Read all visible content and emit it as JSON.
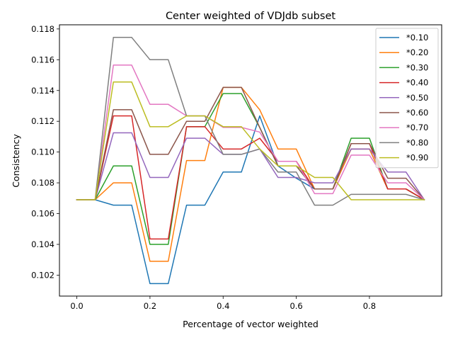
{
  "chart_data": {
    "type": "line",
    "title": "Center weighted of VDJdb subset",
    "xlabel": "Percentage of vector weighted",
    "ylabel": "Consistency",
    "xlim": [
      -0.0475,
      0.9975
    ],
    "ylim": [
      0.10064,
      0.11827
    ],
    "x_ticks": [
      "0.0",
      "0.2",
      "0.4",
      "0.6",
      "0.8"
    ],
    "y_ticks": [
      "0.102",
      "0.104",
      "0.106",
      "0.108",
      "0.110",
      "0.112",
      "0.114",
      "0.116",
      "0.118"
    ],
    "grid": false,
    "legend_position": "top-right",
    "x": [
      0.0,
      0.05,
      0.1,
      0.15,
      0.2,
      0.25,
      0.3,
      0.35,
      0.4,
      0.45,
      0.5,
      0.55,
      0.6,
      0.65,
      0.7,
      0.75,
      0.8,
      0.85,
      0.9,
      0.95
    ],
    "series": [
      {
        "name": "*0.10",
        "color": "#1f77b4",
        "values": [
          0.1069,
          0.1069,
          0.10655,
          0.10655,
          0.10145,
          0.10145,
          0.10655,
          0.10655,
          0.1087,
          0.1087,
          0.11235,
          0.1091,
          0.1083,
          0.1076,
          0.1076,
          0.1102,
          0.1102,
          0.1076,
          0.1076,
          0.1069
        ]
      },
      {
        "name": "*0.20",
        "color": "#ff7f0e",
        "values": [
          0.1069,
          0.1069,
          0.108,
          0.108,
          0.1029,
          0.1029,
          0.10945,
          0.10945,
          0.1142,
          0.1142,
          0.11275,
          0.1102,
          0.1102,
          0.1076,
          0.1076,
          0.1102,
          0.1102,
          0.1076,
          0.1076,
          0.1069
        ]
      },
      {
        "name": "*0.30",
        "color": "#2ca02c",
        "values": [
          0.1069,
          0.1069,
          0.1091,
          0.1091,
          0.104,
          0.104,
          0.11165,
          0.11165,
          0.1138,
          0.1138,
          0.1116,
          0.1091,
          0.1091,
          0.1076,
          0.1076,
          0.1109,
          0.1109,
          0.1076,
          0.1076,
          0.1069
        ]
      },
      {
        "name": "*0.40",
        "color": "#d62728",
        "values": [
          0.1069,
          0.1069,
          0.11235,
          0.11235,
          0.10435,
          0.10435,
          0.11165,
          0.11165,
          0.1102,
          0.1102,
          0.1109,
          0.1094,
          0.1094,
          0.1076,
          0.1076,
          0.11055,
          0.11055,
          0.1076,
          0.1076,
          0.1069
        ]
      },
      {
        "name": "*0.50",
        "color": "#9467bd",
        "values": [
          0.1069,
          0.1069,
          0.11125,
          0.11125,
          0.10835,
          0.10835,
          0.1109,
          0.1109,
          0.10985,
          0.10985,
          0.1102,
          0.10835,
          0.10835,
          0.108,
          0.108,
          0.1102,
          0.1102,
          0.1087,
          0.1087,
          0.1069
        ]
      },
      {
        "name": "*0.60",
        "color": "#8c564b",
        "values": [
          0.1069,
          0.1069,
          0.11275,
          0.11275,
          0.10985,
          0.10985,
          0.112,
          0.112,
          0.1142,
          0.1142,
          0.1116,
          0.1091,
          0.1091,
          0.1076,
          0.1076,
          0.11055,
          0.11055,
          0.1083,
          0.1083,
          0.1069
        ]
      },
      {
        "name": "*0.70",
        "color": "#e377c2",
        "values": [
          0.1069,
          0.1069,
          0.11565,
          0.11565,
          0.1131,
          0.1131,
          0.11235,
          0.11235,
          0.1116,
          0.1116,
          0.1113,
          0.1094,
          0.1094,
          0.1073,
          0.1073,
          0.1098,
          0.1098,
          0.108,
          0.108,
          0.1069
        ]
      },
      {
        "name": "*0.80",
        "color": "#7f7f7f",
        "values": [
          0.1069,
          0.1069,
          0.11745,
          0.11745,
          0.116,
          0.116,
          0.11235,
          0.11235,
          0.10985,
          0.10985,
          0.1102,
          0.1087,
          0.1087,
          0.10655,
          0.10655,
          0.10725,
          0.10725,
          0.10725,
          0.10725,
          0.1069
        ]
      },
      {
        "name": "*0.90",
        "color": "#bcbd22",
        "values": [
          0.1069,
          0.1069,
          0.11455,
          0.11455,
          0.11165,
          0.11165,
          0.11235,
          0.11235,
          0.11165,
          0.11165,
          0.1102,
          0.1091,
          0.1091,
          0.10835,
          0.10835,
          0.1069,
          0.1069,
          0.1069,
          0.1069,
          0.1069
        ]
      }
    ]
  }
}
